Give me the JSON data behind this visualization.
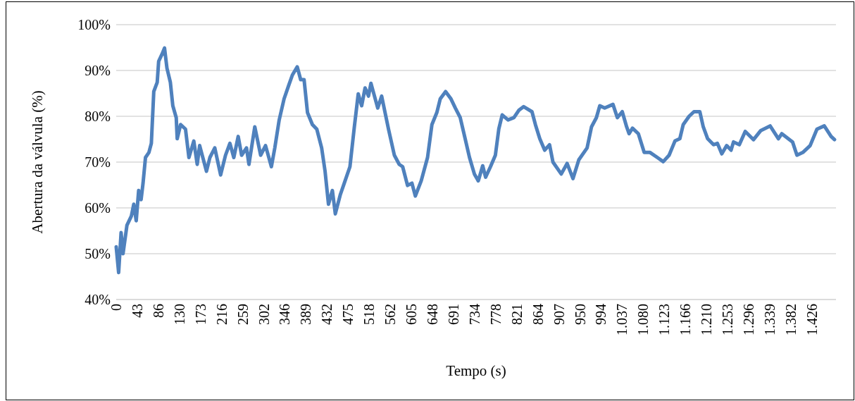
{
  "chart_data": {
    "type": "line",
    "xlabel": "Tempo (s)",
    "ylabel": "Abertura da válvula (%)",
    "xlim": [
      0,
      1475
    ],
    "ylim": [
      40,
      100
    ],
    "xticks": [
      {
        "value": 0,
        "label": "0"
      },
      {
        "value": 43.2,
        "label": "43"
      },
      {
        "value": 86.4,
        "label": "86"
      },
      {
        "value": 129.6,
        "label": "130"
      },
      {
        "value": 172.8,
        "label": "173"
      },
      {
        "value": 216,
        "label": "216"
      },
      {
        "value": 259.2,
        "label": "259"
      },
      {
        "value": 302.4,
        "label": "302"
      },
      {
        "value": 345.6,
        "label": "346"
      },
      {
        "value": 388.8,
        "label": "389"
      },
      {
        "value": 432,
        "label": "432"
      },
      {
        "value": 475.2,
        "label": "475"
      },
      {
        "value": 518.4,
        "label": "518"
      },
      {
        "value": 561.6,
        "label": "562"
      },
      {
        "value": 604.8,
        "label": "605"
      },
      {
        "value": 648,
        "label": "648"
      },
      {
        "value": 691.2,
        "label": "691"
      },
      {
        "value": 734.4,
        "label": "734"
      },
      {
        "value": 777.6,
        "label": "778"
      },
      {
        "value": 820.8,
        "label": "821"
      },
      {
        "value": 864,
        "label": "864"
      },
      {
        "value": 907.2,
        "label": "907"
      },
      {
        "value": 950.4,
        "label": "950"
      },
      {
        "value": 993.6,
        "label": "994"
      },
      {
        "value": 1036.8,
        "label": "1.037"
      },
      {
        "value": 1080,
        "label": "1.080"
      },
      {
        "value": 1123.2,
        "label": "1.123"
      },
      {
        "value": 1166.4,
        "label": "1.166"
      },
      {
        "value": 1209.6,
        "label": "1.210"
      },
      {
        "value": 1252.8,
        "label": "1.253"
      },
      {
        "value": 1296,
        "label": "1.296"
      },
      {
        "value": 1339.2,
        "label": "1.339"
      },
      {
        "value": 1382.4,
        "label": "1.382"
      },
      {
        "value": 1425.6,
        "label": "1.426"
      }
    ],
    "yticks": [
      {
        "value": 40,
        "label": "40%"
      },
      {
        "value": 50,
        "label": "50%"
      },
      {
        "value": 60,
        "label": "60%"
      },
      {
        "value": 70,
        "label": "70%"
      },
      {
        "value": 80,
        "label": "80%"
      },
      {
        "value": 90,
        "label": "90%"
      },
      {
        "value": 100,
        "label": "100%"
      }
    ],
    "grid": "y",
    "marker": "none",
    "line_style": "solid",
    "series": [
      {
        "color": "#4f81bd",
        "x": [
          0,
          5,
          10,
          14,
          22,
          31,
          36,
          41,
          46,
          51,
          55,
          60,
          67,
          72,
          77,
          84,
          87,
          94,
          99,
          104,
          111,
          116,
          123,
          125,
          132,
          142,
          149,
          159,
          166,
          171,
          185,
          192,
          202,
          214,
          224,
          233,
          241,
          250,
          257,
          267,
          272,
          284,
          296,
          306,
          318,
          325,
          334,
          344,
          354,
          361,
          371,
          378,
          385,
          392,
          402,
          411,
          421,
          428,
          435,
          443,
          449,
          459,
          469,
          479,
          488,
          496,
          503,
          510,
          517,
          522,
          536,
          544,
          558,
          570,
          580,
          587,
          597,
          606,
          613,
          625,
          638,
          647,
          657,
          664,
          675,
          686,
          695,
          705,
          714,
          724,
          734,
          742,
          751,
          757,
          767,
          777,
          784,
          791,
          803,
          815,
          825,
          835,
          852,
          859,
          868,
          878,
          888,
          895,
          912,
          924,
          936,
          948,
          965,
          974,
          984,
          991,
          1001,
          1018,
          1027,
          1037,
          1046,
          1051,
          1058,
          1070,
          1082,
          1094,
          1109,
          1121,
          1133,
          1145,
          1155,
          1162,
          1174,
          1184,
          1196,
          1203,
          1212,
          1224,
          1232,
          1241,
          1251,
          1260,
          1265,
          1277,
          1289,
          1306,
          1321,
          1340,
          1357,
          1364,
          1386,
          1395,
          1407,
          1422,
          1436,
          1451,
          1465,
          1472
        ],
        "values": [
          51.5,
          45.9,
          54.6,
          50.0,
          56.2,
          58.2,
          60.8,
          57.2,
          63.8,
          61.8,
          65.4,
          71.0,
          72.1,
          74.1,
          85.4,
          87.4,
          92.0,
          93.6,
          94.9,
          90.5,
          87.4,
          82.3,
          79.7,
          75.1,
          78.2,
          77.2,
          71.0,
          74.6,
          69.5,
          73.6,
          68.0,
          71.0,
          73.1,
          67.2,
          71.5,
          74.1,
          71.0,
          75.6,
          71.5,
          73.1,
          69.5,
          77.7,
          71.5,
          73.6,
          69.0,
          73.1,
          79.2,
          83.8,
          86.9,
          89.0,
          90.8,
          88.0,
          88.0,
          80.8,
          78.2,
          77.2,
          73.1,
          68.0,
          60.8,
          63.8,
          58.7,
          62.8,
          65.9,
          69.0,
          77.7,
          84.9,
          82.3,
          86.2,
          84.4,
          87.2,
          81.8,
          84.4,
          77.2,
          71.5,
          69.5,
          69.0,
          64.9,
          65.4,
          62.6,
          65.9,
          71.0,
          78.2,
          80.8,
          83.8,
          85.4,
          83.8,
          81.8,
          79.7,
          75.6,
          71.0,
          67.4,
          65.9,
          69.2,
          66.7,
          69.0,
          71.5,
          77.2,
          80.3,
          79.2,
          79.7,
          81.3,
          82.1,
          81.0,
          78.2,
          75.1,
          72.6,
          73.8,
          70.0,
          67.4,
          69.7,
          66.4,
          70.5,
          73.1,
          77.7,
          79.7,
          82.3,
          81.8,
          82.6,
          79.7,
          81.0,
          77.7,
          76.2,
          77.4,
          76.2,
          72.1,
          72.1,
          71.0,
          70.1,
          71.5,
          74.6,
          75.1,
          78.2,
          80.0,
          81.0,
          81.0,
          77.7,
          75.1,
          73.8,
          74.1,
          71.8,
          73.6,
          72.6,
          74.4,
          73.8,
          76.7,
          74.9,
          76.9,
          77.9,
          75.1,
          76.2,
          74.4,
          71.5,
          72.1,
          73.6,
          77.2,
          77.9,
          75.6,
          74.9
        ]
      }
    ]
  }
}
